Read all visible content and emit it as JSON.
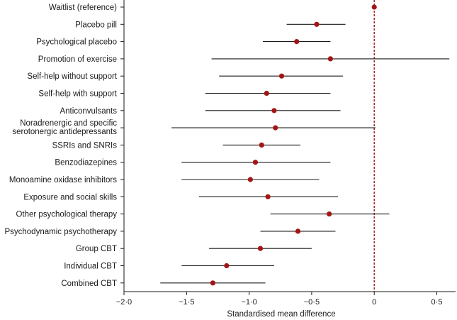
{
  "chart_data": {
    "type": "forest",
    "xlabel": "Standardised mean difference",
    "xlim": [
      -2.0,
      0.65
    ],
    "xticks": [
      -2.0,
      -1.5,
      -1.0,
      -0.5,
      0,
      0.5
    ],
    "xtick_labels": [
      "−2·0",
      "−1·5",
      "−1·0",
      "−0·5",
      "0",
      "0·5"
    ],
    "reference_line": 0,
    "categories": [
      [
        "Waitlist (reference)"
      ],
      [
        "Placebo pill"
      ],
      [
        "Psychological placebo"
      ],
      [
        "Promotion of exercise"
      ],
      [
        "Self-help without support"
      ],
      [
        "Self-help with support"
      ],
      [
        "Anticonvulsants"
      ],
      [
        "Noradrenergic and specific",
        "serotonergic antidepressants"
      ],
      [
        "SSRIs and SNRIs"
      ],
      [
        "Benzodiazepines"
      ],
      [
        "Monoamine oxidase inhibitors"
      ],
      [
        "Exposure and social skills"
      ],
      [
        "Other psychological therapy"
      ],
      [
        "Psychodynamic psychotherapy"
      ],
      [
        "Group CBT"
      ],
      [
        "Individual CBT"
      ],
      [
        "Combined CBT"
      ]
    ],
    "estimates": [
      0,
      -0.46,
      -0.62,
      -0.35,
      -0.74,
      -0.86,
      -0.8,
      -0.79,
      -0.9,
      -0.95,
      -0.99,
      -0.85,
      -0.36,
      -0.61,
      -0.91,
      -1.18,
      -1.29
    ],
    "lower": [
      0,
      -0.7,
      -0.89,
      -1.3,
      -1.24,
      -1.35,
      -1.35,
      -1.62,
      -1.21,
      -1.54,
      -1.54,
      -1.4,
      -0.83,
      -0.91,
      -1.32,
      -1.54,
      -1.71
    ],
    "upper": [
      0,
      -0.23,
      -0.35,
      0.6,
      -0.25,
      -0.35,
      -0.27,
      0.01,
      -0.59,
      -0.35,
      -0.44,
      -0.29,
      0.12,
      -0.31,
      -0.5,
      -0.8,
      -0.87
    ],
    "colors": {
      "point": "#a31515",
      "ci": "#1a1a1a",
      "reference": "#a31515",
      "axis": "#1a1a1a"
    }
  }
}
